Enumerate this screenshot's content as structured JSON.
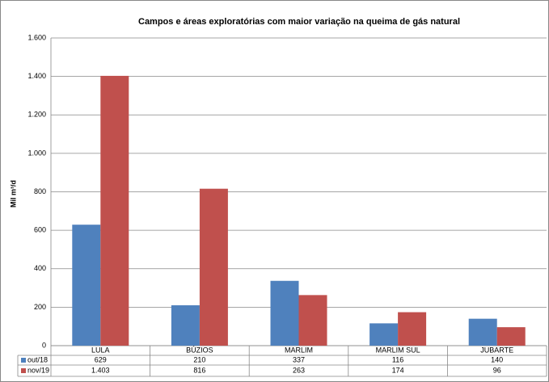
{
  "chart_data": {
    "type": "bar",
    "title": "Campos e áreas exploratórias com maior variação na queima de gás natural",
    "y_label": "Mil m³/d",
    "categories": [
      "LULA",
      "BÚZIOS",
      "MARLIM",
      "MARLIM SUL",
      "JUBARTE"
    ],
    "series": [
      {
        "name": "out/18",
        "color": "#4f81bd",
        "values": [
          629,
          210,
          337,
          116,
          140
        ]
      },
      {
        "name": "nov/19",
        "color": "#c0504d",
        "values": [
          1403,
          816,
          263,
          174,
          96
        ],
        "value_labels": [
          "1.403",
          "816",
          "263",
          "174",
          "96"
        ]
      }
    ],
    "ylim": [
      0,
      1600
    ],
    "yticks": [
      0,
      200,
      400,
      600,
      800,
      {
        "value": 1000,
        "label": "1.000"
      },
      {
        "value": 1200,
        "label": "1.200"
      },
      {
        "value": 1400,
        "label": "1.400"
      },
      {
        "value": 1600,
        "label": "1.600"
      }
    ],
    "grid": true
  }
}
